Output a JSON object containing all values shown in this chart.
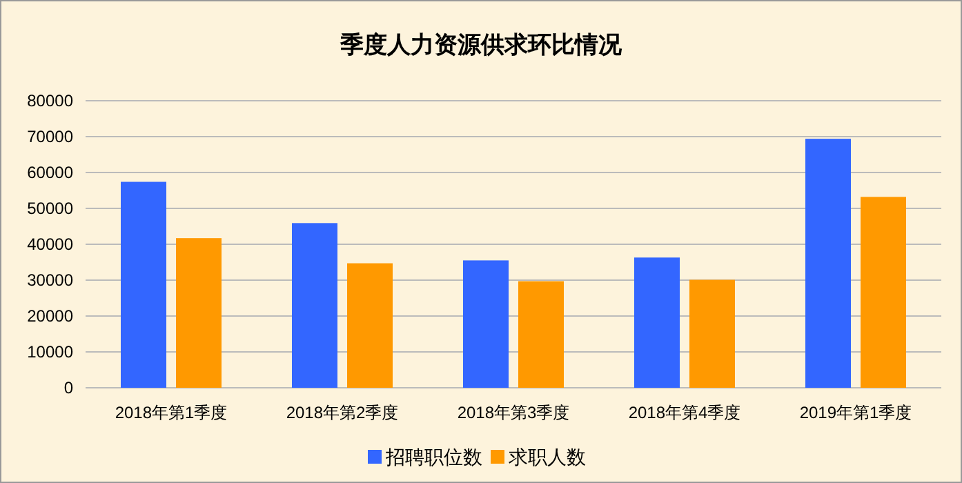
{
  "chart_data": {
    "type": "bar",
    "title": "季度人力资源供求环比情况",
    "categories": [
      "2018年第1季度",
      "2018年第2季度",
      "2018年第3季度",
      "2018年第4季度",
      "2019年第1季度"
    ],
    "series": [
      {
        "name": "招聘职位数",
        "color": "#3366ff",
        "values": [
          57400,
          45900,
          35500,
          36300,
          69400
        ]
      },
      {
        "name": "求职人数",
        "color": "#ff9900",
        "values": [
          41700,
          34700,
          29700,
          30100,
          53200
        ]
      }
    ],
    "ylim": [
      0,
      80000
    ],
    "yticks": [
      0,
      10000,
      20000,
      30000,
      40000,
      50000,
      60000,
      70000,
      80000
    ],
    "grid": "y",
    "legend": "bottom"
  }
}
